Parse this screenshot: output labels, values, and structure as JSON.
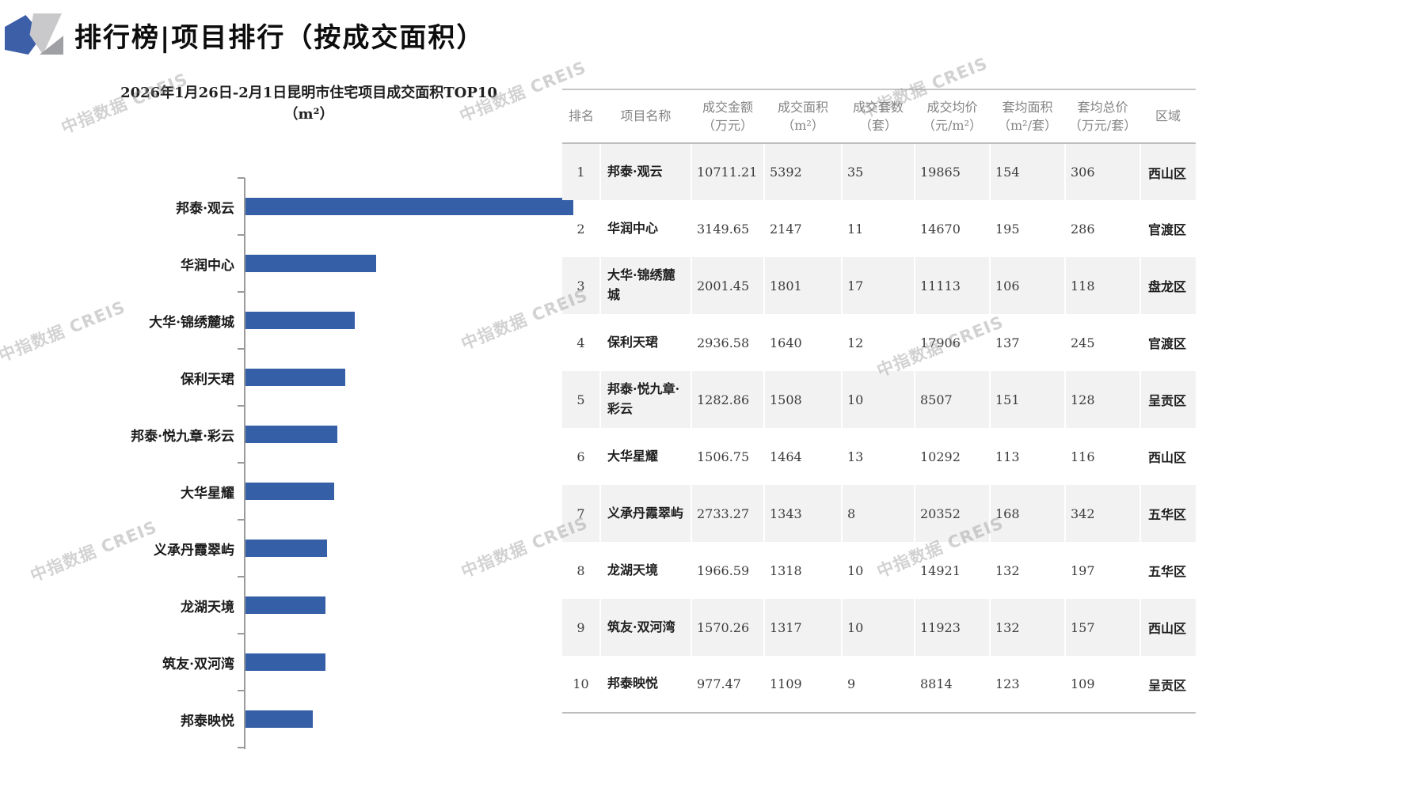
{
  "header": {
    "title": "排行榜|项目排行（按成交面积）"
  },
  "watermark": "中指数据 CREIS",
  "chart_data": {
    "type": "bar",
    "orientation": "horizontal",
    "title": "2026年1月26日-2月1日昆明市住宅项目成交面积TOP10（m²）",
    "categories": [
      "邦泰·观云",
      "华润中心",
      "大华·锦绣麓城",
      "保利天珺",
      "邦泰·悦九章·彩云",
      "大华星耀",
      "义承丹霞翠屿",
      "龙湖天境",
      "筑友·双河湾",
      "邦泰映悦"
    ],
    "values": [
      5392,
      2147,
      1801,
      1640,
      1508,
      1464,
      1343,
      1318,
      1317,
      1109
    ],
    "xlabel": "",
    "ylabel": "",
    "xlim": [
      0,
      5600
    ],
    "grid": false,
    "legend": false,
    "bar_color": "#3560a8",
    "axis_color": "#9a9a9a"
  },
  "table": {
    "columns": [
      "排名",
      "项目名称",
      "成交金额\n（万元）",
      "成交面积\n（m²）",
      "成交套数\n（套）",
      "成交均价\n（元/m²）",
      "套均面积\n（m²/套）",
      "套均总价\n（万元/套）",
      "区域"
    ],
    "rows": [
      [
        "1",
        "邦泰·观云",
        "10711.21",
        "5392",
        "35",
        "19865",
        "154",
        "306",
        "西山区"
      ],
      [
        "2",
        "华润中心",
        "3149.65",
        "2147",
        "11",
        "14670",
        "195",
        "286",
        "官渡区"
      ],
      [
        "3",
        "大华·锦绣麓城",
        "2001.45",
        "1801",
        "17",
        "11113",
        "106",
        "118",
        "盘龙区"
      ],
      [
        "4",
        "保利天珺",
        "2936.58",
        "1640",
        "12",
        "17906",
        "137",
        "245",
        "官渡区"
      ],
      [
        "5",
        "邦泰·悦九章·彩云",
        "1282.86",
        "1508",
        "10",
        "8507",
        "151",
        "128",
        "呈贡区"
      ],
      [
        "6",
        "大华星耀",
        "1506.75",
        "1464",
        "13",
        "10292",
        "113",
        "116",
        "西山区"
      ],
      [
        "7",
        "义承丹霞翠屿",
        "2733.27",
        "1343",
        "8",
        "20352",
        "168",
        "342",
        "五华区"
      ],
      [
        "8",
        "龙湖天境",
        "1966.59",
        "1318",
        "10",
        "14921",
        "132",
        "197",
        "五华区"
      ],
      [
        "9",
        "筑友·双河湾",
        "1570.26",
        "1317",
        "10",
        "11923",
        "132",
        "157",
        "西山区"
      ],
      [
        "10",
        "邦泰映悦",
        "977.47",
        "1109",
        "9",
        "8814",
        "123",
        "109",
        "呈贡区"
      ]
    ]
  }
}
